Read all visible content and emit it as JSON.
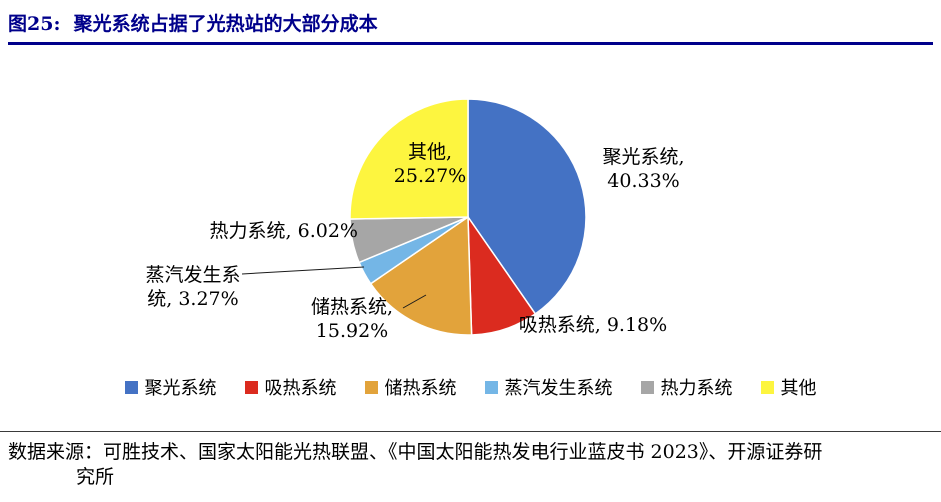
{
  "header": {
    "title": "图25:  聚光系统占据了光热站的大部分成本"
  },
  "chart_data": {
    "type": "pie",
    "title": "聚光系统占据了光热站的大部分成本",
    "categories": [
      "聚光系统",
      "吸热系统",
      "储热系统",
      "蒸汽发生系统",
      "热力系统",
      "其他"
    ],
    "values": [
      40.33,
      9.18,
      15.92,
      3.27,
      6.02,
      25.27
    ],
    "unit": "%",
    "colors": [
      "#4472C4",
      "#DB2B1F",
      "#E2A33B",
      "#74B6E6",
      "#A6A6A6",
      "#FDF53F"
    ],
    "start_angle": 0,
    "direction": "clockwise",
    "legend_position": "bottom",
    "slice_labels": {
      "concentrating": {
        "line1": "聚光系统,",
        "line2": "40.33%"
      },
      "absorber": {
        "line1": "吸热系统, 9.18%"
      },
      "storage": {
        "line1": "储热系统,",
        "line2": "15.92%"
      },
      "steam": {
        "line1": "蒸汽发生系",
        "line2": "统, 3.27%"
      },
      "thermal": {
        "line1": "热力系统, 6.02%"
      },
      "other": {
        "line1": "其他,",
        "line2": "25.27%"
      }
    }
  },
  "footer": {
    "source_line1": "数据来源：可胜技术、国家太阳能光热联盟、《中国太阳能热发电行业蓝皮书 2023》、开源证券研",
    "source_line2": "究所"
  }
}
